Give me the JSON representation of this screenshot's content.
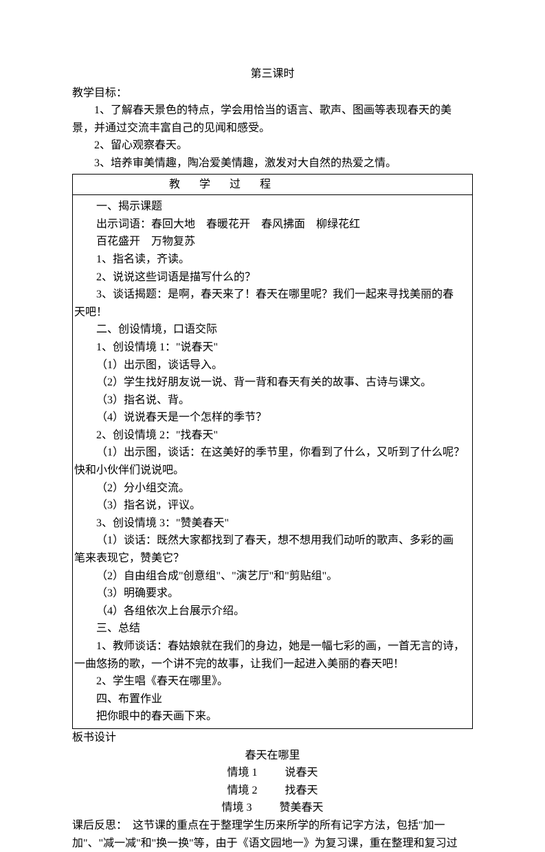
{
  "title": "第三课时",
  "goals_label": "教学目标：",
  "goals": [
    "1、了解春天景色的特点，学会用恰当的语言、歌声、图画等表现春天的美景，并通过交流丰富自己的见闻和感受。",
    "2、留心观察春天。",
    "3、培养审美情趣，陶冶爱美情趣，激发对大自然的热爱之情。"
  ],
  "process_header": "教 学 过 程",
  "process": {
    "p1_title": "一、揭示课题",
    "p1_l1": "出示词语：春回大地　春暖花开　春风拂面　柳绿花红",
    "p1_l2": "百花盛开　万物复苏",
    "p1_l3": "1、指名读，齐读。",
    "p1_l4": "2、说说这些词语是描写什么的？",
    "p1_l5a": "3、谈话揭题：是啊，春天来了！春天在哪里呢？我们一起来寻找美丽的春",
    "p1_l5b": "天吧！",
    "p2_title": "二、创设情境，口语交际",
    "p2_l1": "1、创设情境 1：\"说春天\"",
    "p2_l2": "（1）出示图，谈话导入。",
    "p2_l3": "（2）学生找好朋友说一说、背一背和春天有关的故事、古诗与课文。",
    "p2_l4": "（3）指名说、背。",
    "p2_l5": "（4）说说春天是一个怎样的季节？",
    "p2_l6": "2、创设情境 2：\"找春天\"",
    "p2_l7a": "（1）出示图，谈话：在这美好的季节里，你看到了什么，又听到了什么呢？",
    "p2_l7b": "快和小伙伴们说说吧。",
    "p2_l8": "（2）分小组交流。",
    "p2_l9": "（3）指名说，评议。",
    "p2_l10": "3、创设情境 3：\"赞美春天\"",
    "p2_l11a": "（1）谈话：既然大家都找到了春天，想不想用我们动听的歌声、多彩的画",
    "p2_l11b": "笔来表现它，赞美它？",
    "p2_l12": "（2）自由组合成\"创意组\"、\"演艺厅\"和\"剪贴组\"。",
    "p2_l13": "（3）明确要求。",
    "p2_l14": "（4）各组依次上台展示介绍。",
    "p3_title": "三、总结",
    "p3_l1a": "1、教师谈话：春姑娘就在我们的身边，她是一幅七彩的画，一首无言的诗，",
    "p3_l1b": "一曲悠扬的歌，一个讲不完的故事，让我们一起进入美丽的春天吧！",
    "p3_l2": "2、学生唱《春天在哪里》。",
    "p4_title": "四、布置作业",
    "p4_l1": "把你眼中的春天画下来。"
  },
  "banshu_label": "板书设计",
  "banshu_title": "春天在哪里",
  "banshu_rows": [
    {
      "left": "情境 1",
      "right": "说春天"
    },
    {
      "left": "情境 2",
      "right": "找春天"
    },
    {
      "left": "情境 3",
      "right": "赞美春天"
    }
  ],
  "reflection_label": "课后反思：",
  "reflection_text": "　这节课的重点在于整理学生历来所学的所有记字方法，包括\"加一加\"、\"减一减\"和\"换一换\"等，由于《语文园地一》为复习课，重在整理和复习过"
}
